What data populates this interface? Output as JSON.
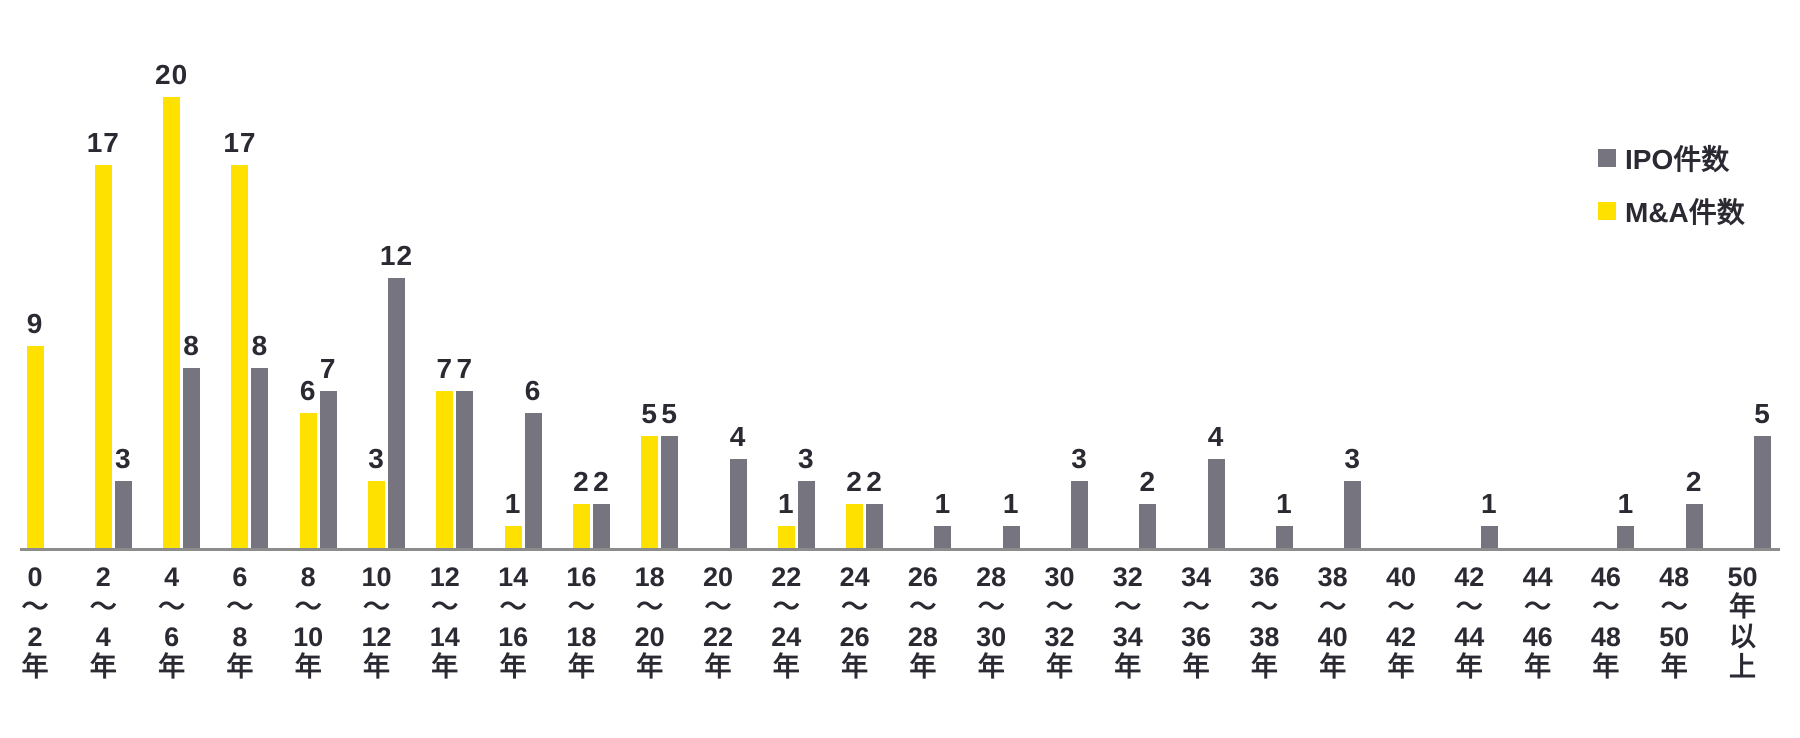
{
  "chart_data": {
    "type": "bar",
    "title": "",
    "xlabel": "",
    "ylabel": "",
    "ylim": [
      0,
      20
    ],
    "grid": false,
    "data_labels": true,
    "legend_position": "top-right",
    "legend_order": [
      "IPO件数",
      "M&A件数"
    ],
    "label_color": "#2B2A33",
    "axis_line_color": "#8C8C8C",
    "categories": [
      "0〜2年",
      "2〜4年",
      "4〜6年",
      "6〜8年",
      "8〜10年",
      "10〜12年",
      "12〜14年",
      "14〜16年",
      "16〜18年",
      "18〜20年",
      "20〜22年",
      "22〜24年",
      "24〜26年",
      "26〜28年",
      "28〜30年",
      "30〜32年",
      "32〜34年",
      "34〜36年",
      "36〜38年",
      "38〜40年",
      "40〜42年",
      "42〜44年",
      "44〜46年",
      "46〜48年",
      "48〜50年",
      "50年以上"
    ],
    "category_display": [
      "0\n〜\n2\n年",
      "2\n〜\n4\n年",
      "4\n〜\n6\n年",
      "6\n〜\n8\n年",
      "8\n〜\n10\n年",
      "10\n〜\n12\n年",
      "12\n〜\n14\n年",
      "14\n〜\n16\n年",
      "16\n〜\n18\n年",
      "18\n〜\n20\n年",
      "20\n〜\n22\n年",
      "22\n〜\n24\n年",
      "24\n〜\n26\n年",
      "26\n〜\n28\n年",
      "28\n〜\n30\n年",
      "30\n〜\n32\n年",
      "32\n〜\n34\n年",
      "34\n〜\n36\n年",
      "36\n〜\n38\n年",
      "38\n〜\n40\n年",
      "40\n〜\n42\n年",
      "42\n〜\n44\n年",
      "44\n〜\n46\n年",
      "46\n〜\n48\n年",
      "48\n〜\n50\n年",
      "50\n年\n以\n上"
    ],
    "series": [
      {
        "name": "M&A件数",
        "color": "#FFE100",
        "values": [
          9,
          17,
          20,
          17,
          6,
          3,
          7,
          1,
          2,
          5,
          0,
          1,
          2,
          0,
          0,
          0,
          0,
          0,
          0,
          0,
          0,
          0,
          0,
          0,
          0,
          0
        ]
      },
      {
        "name": "IPO件数",
        "color": "#76747F",
        "values": [
          0,
          3,
          8,
          8,
          7,
          12,
          7,
          6,
          2,
          5,
          4,
          3,
          2,
          1,
          1,
          3,
          2,
          4,
          1,
          3,
          0,
          1,
          0,
          1,
          2,
          5
        ]
      }
    ]
  }
}
